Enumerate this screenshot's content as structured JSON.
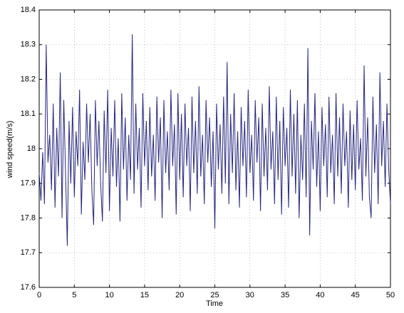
{
  "chart_data": {
    "type": "line",
    "xlabel": "Time",
    "ylabel": "wind speed(m/s)",
    "xlim": [
      0,
      50
    ],
    "xticks": [
      0,
      5,
      10,
      15,
      20,
      25,
      30,
      35,
      40,
      45,
      50
    ],
    "ylim": [
      17.6,
      18.4
    ],
    "yticks": [
      17.6,
      17.7,
      17.8,
      17.9,
      18,
      18.1,
      18.2,
      18.3,
      18.4
    ],
    "grid": true,
    "x": [
      0,
      0.25,
      0.5,
      0.75,
      1,
      1.25,
      1.5,
      1.75,
      2,
      2.25,
      2.5,
      2.75,
      3,
      3.25,
      3.5,
      3.75,
      4,
      4.25,
      4.5,
      4.75,
      5,
      5.25,
      5.5,
      5.75,
      6,
      6.25,
      6.5,
      6.75,
      7,
      7.25,
      7.5,
      7.75,
      8,
      8.25,
      8.5,
      8.75,
      9,
      9.25,
      9.5,
      9.75,
      10,
      10.25,
      10.5,
      10.75,
      11,
      11.25,
      11.5,
      11.75,
      12,
      12.25,
      12.5,
      12.75,
      13,
      13.25,
      13.5,
      13.75,
      14,
      14.25,
      14.5,
      14.75,
      15,
      15.25,
      15.5,
      15.75,
      16,
      16.25,
      16.5,
      16.75,
      17,
      17.25,
      17.5,
      17.75,
      18,
      18.25,
      18.5,
      18.75,
      19,
      19.25,
      19.5,
      19.75,
      20,
      20.25,
      20.5,
      20.75,
      21,
      21.25,
      21.5,
      21.75,
      22,
      22.25,
      22.5,
      22.75,
      23,
      23.25,
      23.5,
      23.75,
      24,
      24.25,
      24.5,
      24.75,
      25,
      25.25,
      25.5,
      25.75,
      26,
      26.25,
      26.5,
      26.75,
      27,
      27.25,
      27.5,
      27.75,
      28,
      28.25,
      28.5,
      28.75,
      29,
      29.25,
      29.5,
      29.75,
      30,
      30.25,
      30.5,
      30.75,
      31,
      31.25,
      31.5,
      31.75,
      32,
      32.25,
      32.5,
      32.75,
      33,
      33.25,
      33.5,
      33.75,
      34,
      34.25,
      34.5,
      34.75,
      35,
      35.25,
      35.5,
      35.75,
      36,
      36.25,
      36.5,
      36.75,
      37,
      37.25,
      37.5,
      37.75,
      38,
      38.25,
      38.5,
      38.75,
      39,
      39.25,
      39.5,
      39.75,
      40,
      40.25,
      40.5,
      40.75,
      41,
      41.25,
      41.5,
      41.75,
      42,
      42.25,
      42.5,
      42.75,
      43,
      43.25,
      43.5,
      43.75,
      44,
      44.25,
      44.5,
      44.75,
      45,
      45.25,
      45.5,
      45.75,
      46,
      46.25,
      46.5,
      46.75,
      47,
      47.25,
      47.5,
      47.75,
      48,
      48.25,
      48.5,
      48.75,
      49,
      49.25,
      49.5,
      49.75,
      50
    ],
    "series": [
      {
        "name": "wind speed",
        "color": "#262680",
        "values": [
          17.93,
          17.85,
          17.99,
          17.84,
          18.3,
          17.96,
          18.04,
          17.88,
          18.13,
          17.83,
          18.06,
          17.92,
          18.22,
          17.8,
          18.14,
          17.93,
          17.72,
          18.08,
          17.9,
          18.12,
          17.86,
          18.05,
          17.95,
          18.17,
          17.81,
          18.02,
          17.91,
          18.13,
          17.96,
          18.1,
          17.88,
          17.78,
          18.14,
          17.95,
          18.08,
          17.9,
          17.79,
          18.11,
          17.93,
          18.17,
          17.82,
          18.06,
          17.92,
          18.14,
          17.89,
          18.03,
          17.79,
          18.16,
          17.94,
          18.09,
          17.85,
          18.04,
          17.91,
          18.33,
          17.87,
          18.13,
          17.94,
          18.06,
          17.83,
          18.16,
          17.95,
          18.08,
          17.88,
          18.12,
          17.92,
          18.04,
          17.85,
          18.15,
          17.96,
          18.09,
          17.8,
          18.14,
          17.93,
          18.05,
          17.88,
          18.17,
          17.95,
          18.07,
          17.81,
          18.16,
          17.91,
          18.1,
          17.86,
          18.13,
          17.95,
          18.06,
          17.82,
          18.15,
          17.93,
          18.08,
          17.87,
          18.18,
          17.92,
          18.04,
          17.84,
          18.14,
          17.96,
          18.09,
          17.89,
          18.05,
          17.77,
          18.13,
          17.94,
          18.07,
          17.87,
          18.15,
          17.9,
          18.25,
          17.84,
          18.1,
          17.93,
          18.16,
          17.88,
          18.05,
          17.83,
          18.12,
          17.95,
          18.08,
          17.86,
          18.17,
          17.93,
          18.04,
          17.85,
          18.14,
          17.96,
          18.09,
          17.82,
          18.13,
          17.92,
          18.06,
          17.88,
          18.18,
          17.94,
          18.05,
          17.84,
          18.15,
          17.91,
          18.08,
          17.81,
          18.12,
          17.95,
          18.06,
          17.83,
          18.17,
          17.92,
          18.1,
          17.87,
          18.14,
          17.8,
          18.04,
          17.91,
          18.13,
          17.86,
          18.29,
          17.75,
          18.08,
          17.94,
          18.16,
          17.89,
          18.05,
          17.82,
          18.12,
          17.95,
          18.07,
          17.86,
          18.15,
          17.93,
          18.04,
          17.84,
          18.16,
          17.92,
          18.09,
          17.87,
          18.13,
          17.95,
          18.05,
          17.83,
          18.11,
          17.91,
          18.07,
          17.88,
          18.14,
          17.94,
          18.03,
          17.85,
          18.24,
          17.92,
          18.09,
          17.86,
          17.8,
          18.15,
          17.93,
          18.07,
          17.84,
          18.22,
          17.95,
          18.08,
          17.89,
          18.13,
          17.94,
          17.84
        ]
      }
    ]
  }
}
